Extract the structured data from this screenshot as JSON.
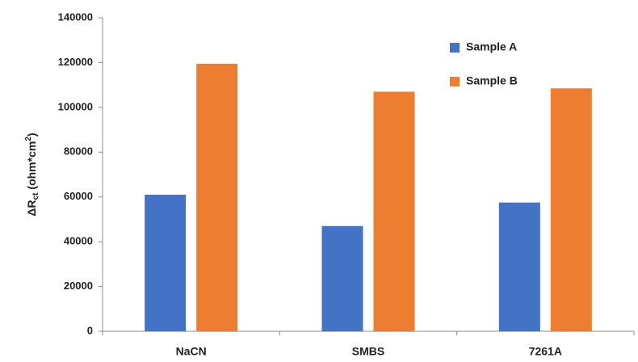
{
  "chart_data": {
    "type": "bar",
    "y_label": [
      "ΔR",
      "ct",
      " (ohm*cm",
      "2",
      ")"
    ],
    "categories": [
      "NaCN",
      "SMBS",
      "7261A"
    ],
    "series": [
      {
        "name": "Sample A",
        "color": "#4472c4",
        "values": [
          61000,
          47000,
          57500
        ]
      },
      {
        "name": "Sample B",
        "color": "#ed7d31",
        "values": [
          119500,
          107000,
          108500
        ]
      }
    ],
    "ylim": [
      0,
      140000
    ],
    "yticks": [
      0,
      20000,
      40000,
      60000,
      80000,
      100000,
      120000,
      140000
    ],
    "grid": false,
    "legend": "upper right"
  }
}
